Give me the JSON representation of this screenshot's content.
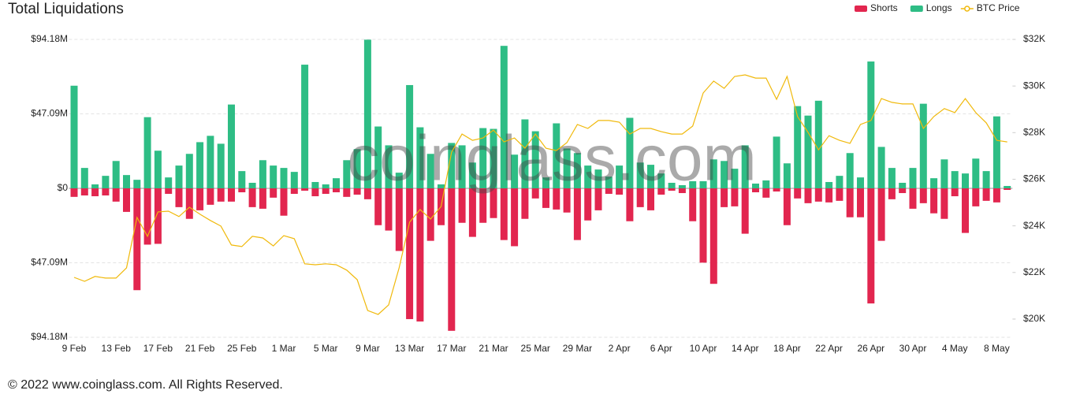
{
  "chart_data": {
    "type": "bar",
    "title": "Total Liquidations",
    "watermark": "coinglass.com",
    "footer": "© 2022 www.coinglass.com. All Rights Reserved.",
    "legend": "top-right",
    "grid": true,
    "categories": [
      "9 Feb",
      null,
      null,
      null,
      "13 Feb",
      null,
      null,
      null,
      "17 Feb",
      null,
      null,
      null,
      "21 Feb",
      null,
      null,
      null,
      "25 Feb",
      null,
      null,
      null,
      "1 Mar",
      null,
      null,
      null,
      "5 Mar",
      null,
      null,
      null,
      "9 Mar",
      null,
      null,
      null,
      "13 Mar",
      null,
      null,
      null,
      "17 Mar",
      null,
      null,
      null,
      "21 Mar",
      null,
      null,
      null,
      "25 Mar",
      null,
      null,
      null,
      "29 Mar",
      null,
      null,
      null,
      "2 Apr",
      null,
      null,
      null,
      "6 Apr",
      null,
      null,
      null,
      "10 Apr",
      null,
      null,
      null,
      "14 Apr",
      null,
      null,
      null,
      "18 Apr",
      null,
      null,
      null,
      "22 Apr",
      null,
      null,
      null,
      "26 Apr",
      null,
      null,
      null,
      "30 Apr",
      null,
      null,
      null,
      "4 May",
      null,
      null,
      null,
      "8 May",
      null
    ],
    "ylim": [
      -94.18,
      94.18
    ],
    "yticks": [
      {
        "value": 94.18,
        "label": "$94.18M"
      },
      {
        "value": 47.09,
        "label": "$47.09M"
      },
      {
        "value": 0,
        "label": "$0"
      },
      {
        "value": -47.09,
        "label": "$47.09M"
      },
      {
        "value": -94.18,
        "label": "$94.18M"
      }
    ],
    "y2lim": [
      19220,
      32000
    ],
    "y2ticks": [
      {
        "value": 20000,
        "label": "$20K"
      },
      {
        "value": 22000,
        "label": "$22K"
      },
      {
        "value": 24000,
        "label": "$24K"
      },
      {
        "value": 26000,
        "label": "$26K"
      },
      {
        "value": 28000,
        "label": "$28K"
      },
      {
        "value": 30000,
        "label": "$30K"
      },
      {
        "value": 32000,
        "label": "$32K"
      }
    ],
    "series": [
      {
        "name": "Shorts",
        "type": "bar",
        "color": "#e2264f",
        "values": [
          -5.4,
          -4.5,
          -5,
          -4.5,
          -8.4,
          -14.9,
          -64.4,
          -35.6,
          -35.1,
          -3.5,
          -11.9,
          -19.3,
          -13.9,
          -10.4,
          -8.4,
          -8.4,
          -2.5,
          -11.9,
          -12.9,
          -5.9,
          -17.3,
          -3.5,
          -1.5,
          -5,
          -3.5,
          -2.5,
          -5.4,
          -4,
          -6.9,
          -23.3,
          -26.7,
          -39.6,
          -82.7,
          -84.2,
          -33.2,
          -23.3,
          -90.1,
          -21.8,
          -30.7,
          -21.8,
          -18.8,
          -32.7,
          -36.6,
          -19.3,
          -6.4,
          -12.4,
          -13.4,
          -15.3,
          -32.7,
          -20.3,
          -13.9,
          -3.5,
          -4,
          -20.8,
          -11.9,
          -13.9,
          -4,
          -1.5,
          -3,
          -20.8,
          -47,
          -60.4,
          -11.9,
          -11.4,
          -28.7,
          -2.5,
          -5.9,
          -2,
          -23.3,
          -6.4,
          -9.4,
          -8.4,
          -8.9,
          -7.9,
          -18.3,
          -18.3,
          -72.8,
          -33.2,
          -6.9,
          -3,
          -12.9,
          -9.4,
          -15.8,
          -19.3,
          -5,
          -28.2,
          -11.4,
          -7.9,
          -8.9,
          -1
        ]
      },
      {
        "name": "Longs",
        "type": "bar",
        "color": "#2ebd85",
        "values": [
          64.9,
          12.9,
          2.5,
          7.9,
          17.3,
          8.4,
          5.4,
          45,
          23.8,
          6.9,
          14.4,
          21.8,
          29.2,
          33.2,
          28.2,
          53,
          10.9,
          3.5,
          17.8,
          14.4,
          12.9,
          10.4,
          78.2,
          4,
          2.5,
          6.4,
          17.8,
          24.8,
          94,
          39.1,
          27.2,
          9.9,
          65.3,
          38.6,
          21.8,
          2.5,
          28.7,
          27.2,
          16.3,
          38.1,
          37.6,
          90.1,
          21.3,
          43.6,
          36.1,
          6.9,
          41.1,
          25.2,
          22.3,
          14.4,
          11.9,
          7.4,
          14.4,
          44.6,
          16.3,
          14.9,
          9.4,
          3.5,
          2,
          4.5,
          4.5,
          18.3,
          17.3,
          12.4,
          27.2,
          3,
          5,
          32.7,
          15.8,
          52,
          46,
          55.4,
          4,
          7.9,
          22.3,
          6.9,
          80.2,
          26.2,
          12.9,
          3.5,
          12.9,
          53.5,
          6.4,
          18.3,
          10.9,
          9.4,
          18.8,
          10.9,
          45.5,
          1.5
        ]
      },
      {
        "name": "BTC Price",
        "type": "line",
        "axis": "y2",
        "color": "#f0b90b",
        "values": [
          21790,
          21620,
          21830,
          21760,
          21760,
          22200,
          24360,
          23550,
          24600,
          24630,
          24400,
          24800,
          24500,
          24230,
          23990,
          23180,
          23110,
          23550,
          23480,
          23140,
          23580,
          23450,
          22370,
          22330,
          22370,
          22330,
          22100,
          21690,
          20370,
          20200,
          20610,
          22200,
          24160,
          24700,
          24290,
          24830,
          27160,
          27940,
          27670,
          27770,
          28110,
          27600,
          27770,
          27330,
          27940,
          27330,
          27230,
          27570,
          28350,
          28180,
          28520,
          28520,
          28450,
          27940,
          28180,
          28180,
          28040,
          27940,
          27940,
          28280,
          29700,
          30210,
          29900,
          30410,
          30480,
          30340,
          30340,
          29430,
          30410,
          28690,
          28010,
          27260,
          27870,
          27670,
          27540,
          28350,
          28520,
          29460,
          29300,
          29230,
          29230,
          28180,
          28690,
          29030,
          28860,
          29460,
          28860,
          28420,
          27670,
          27600
        ]
      }
    ]
  }
}
